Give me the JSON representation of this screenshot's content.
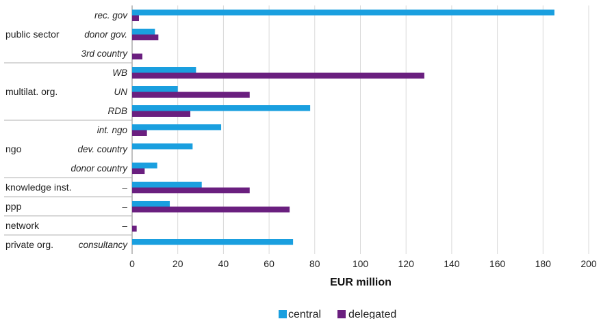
{
  "chart_data": {
    "type": "bar",
    "orientation": "horizontal",
    "xlabel": "EUR million",
    "xlim": [
      0,
      200
    ],
    "xticks": [
      0,
      20,
      40,
      60,
      80,
      100,
      120,
      140,
      160,
      180,
      200
    ],
    "grid": true,
    "legend_position": "bottom",
    "groups": [
      {
        "name": "public sector",
        "categories": [
          "rec. gov",
          "donor gov.",
          "3rd country"
        ]
      },
      {
        "name": "multilat. org.",
        "categories": [
          "WB",
          "UN",
          "RDB"
        ]
      },
      {
        "name": "ngo",
        "categories": [
          "int. ngo",
          "dev. country",
          "donor country"
        ]
      },
      {
        "name": "knowledge inst.",
        "categories": [
          "–"
        ]
      },
      {
        "name": "ppp",
        "categories": [
          "–"
        ]
      },
      {
        "name": "network",
        "categories": [
          "–"
        ]
      },
      {
        "name": "private org.",
        "categories": [
          "consultancy"
        ]
      }
    ],
    "series": [
      {
        "name": "central",
        "color": "#1a9fdf",
        "values": [
          185,
          10,
          0,
          28,
          20,
          78,
          39,
          26.5,
          11,
          30.5,
          16.5,
          0,
          70.5
        ]
      },
      {
        "name": "delegated",
        "color": "#6a1f7f",
        "values": [
          3,
          11.5,
          4.5,
          128,
          51.5,
          25.5,
          6.5,
          0,
          5.5,
          51.5,
          69,
          2,
          0
        ]
      }
    ]
  }
}
